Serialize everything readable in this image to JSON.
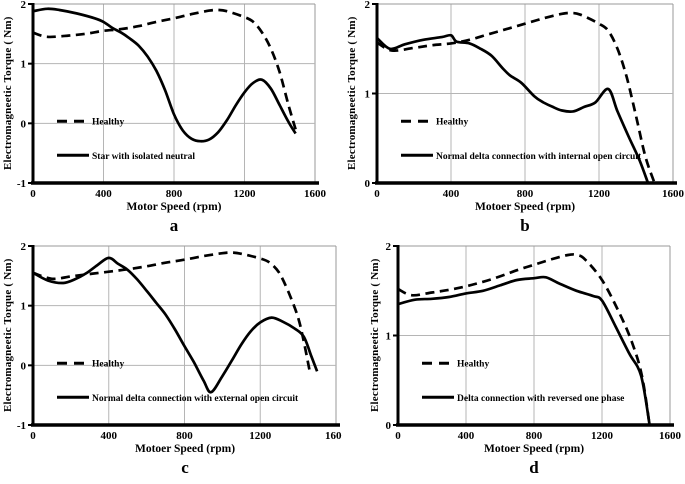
{
  "figure": {
    "background": "#ffffff",
    "panel_captions": [
      "a",
      "b",
      "c",
      "d"
    ]
  },
  "colors": {
    "line": "#000000",
    "grid": "#b5b5b5",
    "border": "#9a9a9a",
    "axis": "#000000",
    "text": "#000000",
    "background": "#ffffff"
  },
  "chart_data": [
    {
      "type": "line",
      "caption": "a",
      "xlabel": "Motor Speed (rpm)",
      "ylabel": "Electromagneetic Torque ( Nm)",
      "xlim": [
        0,
        1600
      ],
      "ylim": [
        -1,
        2
      ],
      "xticks": [
        0,
        400,
        800,
        1200,
        1600
      ],
      "yticks": [
        -1,
        0,
        1,
        2
      ],
      "grid": true,
      "legend_position": "inside-left",
      "series": [
        {
          "name": "Healthy",
          "style": "dashed",
          "x": [
            0,
            80,
            200,
            300,
            400,
            500,
            600,
            700,
            800,
            900,
            1000,
            1050,
            1100,
            1200,
            1250,
            1300,
            1350,
            1400,
            1450,
            1490
          ],
          "y": [
            1.52,
            1.45,
            1.47,
            1.5,
            1.55,
            1.58,
            1.63,
            1.7,
            1.76,
            1.83,
            1.89,
            1.9,
            1.88,
            1.78,
            1.7,
            1.52,
            1.25,
            0.85,
            0.3,
            -0.1
          ]
        },
        {
          "name": "Star with isolated neutral",
          "style": "solid",
          "x": [
            0,
            80,
            150,
            250,
            350,
            400,
            450,
            500,
            550,
            600,
            650,
            700,
            750,
            800,
            850,
            900,
            950,
            1000,
            1050,
            1100,
            1150,
            1200,
            1250,
            1300,
            1350,
            1400,
            1450,
            1490
          ],
          "y": [
            1.88,
            1.92,
            1.9,
            1.84,
            1.76,
            1.7,
            1.6,
            1.52,
            1.42,
            1.3,
            1.12,
            0.88,
            0.55,
            0.15,
            -0.12,
            -0.26,
            -0.3,
            -0.27,
            -0.15,
            0.05,
            0.3,
            0.52,
            0.68,
            0.73,
            0.58,
            0.3,
            0.02,
            -0.17
          ]
        }
      ]
    },
    {
      "type": "line",
      "caption": "b",
      "xlabel": "Motoer Speed (rpm)",
      "ylabel": "Electromagneetic Torque ( Nm)",
      "xlim": [
        0,
        1600
      ],
      "ylim": [
        0,
        2
      ],
      "xticks": [
        0,
        400,
        800,
        1200,
        1600
      ],
      "yticks": [
        0,
        1,
        2
      ],
      "grid": true,
      "legend_position": "inside-left",
      "series": [
        {
          "name": "Healthy",
          "style": "dashed",
          "x": [
            0,
            80,
            200,
            300,
            400,
            500,
            600,
            700,
            800,
            900,
            1000,
            1050,
            1100,
            1200,
            1250,
            1300,
            1350,
            1400,
            1450,
            1500
          ],
          "y": [
            1.57,
            1.48,
            1.51,
            1.54,
            1.56,
            1.6,
            1.66,
            1.72,
            1.78,
            1.84,
            1.89,
            1.9,
            1.88,
            1.78,
            1.7,
            1.5,
            1.18,
            0.75,
            0.3,
            0.0
          ]
        },
        {
          "name": "Normal delta connection with internal open circuit",
          "style": "solid",
          "x": [
            0,
            70,
            150,
            250,
            350,
            400,
            430,
            500,
            560,
            620,
            680,
            720,
            780,
            850,
            900,
            950,
            1000,
            1060,
            1120,
            1180,
            1250,
            1300,
            1360,
            1420,
            1465
          ],
          "y": [
            1.62,
            1.5,
            1.55,
            1.6,
            1.63,
            1.65,
            1.58,
            1.56,
            1.5,
            1.42,
            1.28,
            1.2,
            1.12,
            0.97,
            0.9,
            0.85,
            0.81,
            0.8,
            0.85,
            0.9,
            1.05,
            0.8,
            0.52,
            0.25,
            0.0
          ]
        }
      ]
    },
    {
      "type": "line",
      "caption": "c",
      "xlabel": "Motoer Speed (rpm)",
      "ylabel": "Electromagneetic Torque ( Nm)",
      "xlim": [
        0,
        1600
      ],
      "ylim": [
        -1,
        2
      ],
      "xticks": [
        0,
        400,
        800,
        1200,
        1600
      ],
      "yticks": [
        -1,
        0,
        1,
        2
      ],
      "grid": true,
      "legend_position": "inside-left",
      "series": [
        {
          "name": "Healthy",
          "style": "dashed",
          "x": [
            0,
            100,
            200,
            300,
            400,
            500,
            600,
            700,
            800,
            900,
            1000,
            1050,
            1100,
            1200,
            1250,
            1300,
            1350,
            1400,
            1430,
            1460
          ],
          "y": [
            1.55,
            1.45,
            1.49,
            1.53,
            1.57,
            1.61,
            1.66,
            1.72,
            1.77,
            1.83,
            1.88,
            1.89,
            1.87,
            1.79,
            1.72,
            1.55,
            1.22,
            0.8,
            0.4,
            -0.08
          ]
        },
        {
          "name": "Normal delta connection with external open circuit",
          "style": "solid",
          "x": [
            0,
            80,
            160,
            220,
            280,
            340,
            400,
            450,
            500,
            550,
            600,
            650,
            700,
            750,
            800,
            850,
            900,
            940,
            1000,
            1050,
            1100,
            1150,
            1200,
            1260,
            1320,
            1380,
            1430,
            1470,
            1500
          ],
          "y": [
            1.55,
            1.42,
            1.38,
            1.44,
            1.54,
            1.68,
            1.8,
            1.7,
            1.6,
            1.44,
            1.25,
            1.05,
            0.85,
            0.6,
            0.32,
            0.05,
            -0.25,
            -0.45,
            -0.18,
            0.08,
            0.35,
            0.57,
            0.72,
            0.8,
            0.73,
            0.62,
            0.48,
            0.15,
            -0.1
          ]
        }
      ]
    },
    {
      "type": "line",
      "caption": "d",
      "xlabel": "Motoer Speed (rpm)",
      "ylabel": "Electromagneetic Torque ( Nm)",
      "xlim": [
        0,
        1600
      ],
      "ylim": [
        0,
        2
      ],
      "xticks": [
        0,
        400,
        800,
        1200,
        1600
      ],
      "yticks": [
        0,
        1,
        2
      ],
      "grid": true,
      "legend_position": "inside-left",
      "series": [
        {
          "name": "Healthy",
          "style": "dashed",
          "x": [
            0,
            80,
            200,
            300,
            400,
            500,
            600,
            700,
            800,
            900,
            1000,
            1050,
            1100,
            1200,
            1300,
            1375,
            1435,
            1480
          ],
          "y": [
            1.52,
            1.45,
            1.48,
            1.51,
            1.55,
            1.6,
            1.66,
            1.73,
            1.79,
            1.85,
            1.9,
            1.9,
            1.85,
            1.62,
            1.26,
            0.93,
            0.55,
            0.0
          ]
        },
        {
          "name": "Delta connection with reversed one phase",
          "style": "solid",
          "x": [
            0,
            100,
            200,
            300,
            400,
            500,
            600,
            700,
            800,
            870,
            950,
            1050,
            1150,
            1200,
            1280,
            1360,
            1430,
            1480
          ],
          "y": [
            1.35,
            1.4,
            1.41,
            1.43,
            1.47,
            1.5,
            1.56,
            1.62,
            1.64,
            1.65,
            1.58,
            1.5,
            1.44,
            1.39,
            1.1,
            0.8,
            0.55,
            0.0
          ]
        }
      ]
    }
  ]
}
